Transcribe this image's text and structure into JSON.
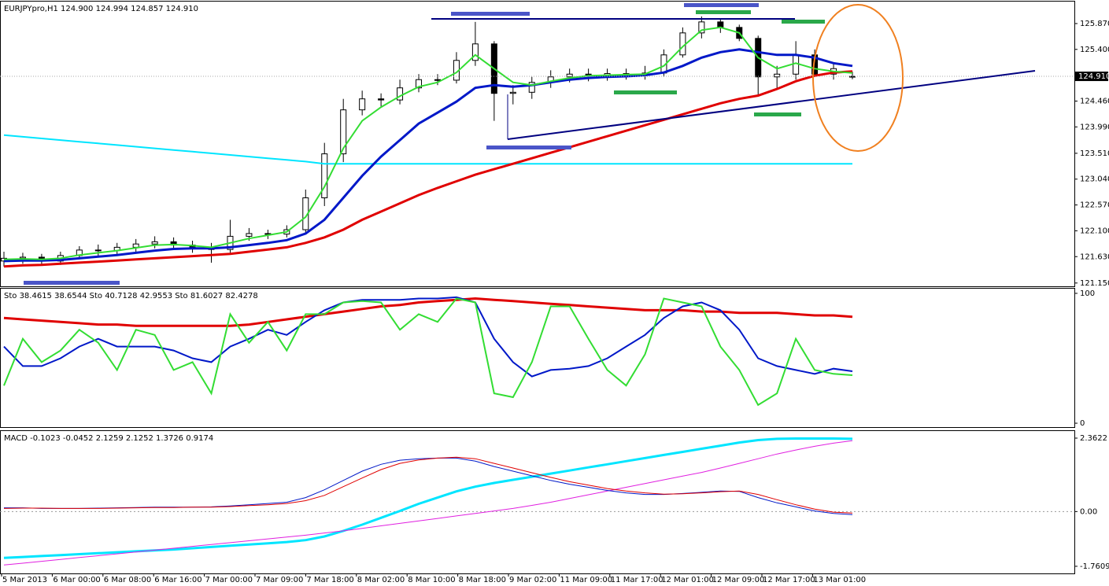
{
  "chart_data": [
    {
      "type": "candlestick",
      "title": "EURJPYpro,H1  124.900 124.994 124.857 124.910",
      "open": [
        121.55,
        121.6,
        121.62,
        121.55,
        121.65,
        121.75,
        121.74,
        121.8,
        121.86,
        121.9,
        121.84,
        121.8,
        121.76,
        122.0,
        122.05,
        122.04,
        122.12,
        122.7,
        123.5,
        124.3,
        124.5,
        124.48,
        124.7,
        124.85,
        124.84,
        125.2,
        125.5,
        124.6,
        124.62,
        124.8,
        124.9,
        124.95,
        124.93,
        124.96,
        124.94,
        124.97,
        125.3,
        125.7,
        125.9,
        125.8,
        125.6,
        124.9,
        124.95,
        125.3,
        124.95,
        124.9
      ],
      "high": [
        121.72,
        121.7,
        121.68,
        121.72,
        121.82,
        121.85,
        121.88,
        121.95,
        122.0,
        121.98,
        121.92,
        121.88,
        122.3,
        122.15,
        122.12,
        122.2,
        122.85,
        123.7,
        124.5,
        124.65,
        124.6,
        124.85,
        124.95,
        124.95,
        125.35,
        125.9,
        125.55,
        124.75,
        124.9,
        125.02,
        125.05,
        125.05,
        125.05,
        125.05,
        125.1,
        125.4,
        125.8,
        126.0,
        125.95,
        125.85,
        125.65,
        125.1,
        125.55,
        125.4,
        125.15,
        124.994
      ],
      "low": [
        121.45,
        121.5,
        121.48,
        121.48,
        121.58,
        121.62,
        121.65,
        121.7,
        121.78,
        121.75,
        121.7,
        121.52,
        121.7,
        121.92,
        121.95,
        121.98,
        122.05,
        122.55,
        123.35,
        124.2,
        124.35,
        124.4,
        124.62,
        124.75,
        124.78,
        125.1,
        124.1,
        124.4,
        124.5,
        124.7,
        124.8,
        124.82,
        124.83,
        124.85,
        124.85,
        124.9,
        125.25,
        125.6,
        125.7,
        125.55,
        124.55,
        124.7,
        124.85,
        124.9,
        124.85,
        124.857
      ],
      "close": [
        121.6,
        121.62,
        121.55,
        121.65,
        121.75,
        121.74,
        121.8,
        121.86,
        121.9,
        121.84,
        121.8,
        121.76,
        122.0,
        122.05,
        122.04,
        122.12,
        122.7,
        123.5,
        124.3,
        124.5,
        124.48,
        124.7,
        124.85,
        124.84,
        125.2,
        125.5,
        124.6,
        124.62,
        124.8,
        124.9,
        124.95,
        124.93,
        124.96,
        124.94,
        124.97,
        125.3,
        125.7,
        125.9,
        125.8,
        125.6,
        124.9,
        124.95,
        125.3,
        124.95,
        125.05,
        124.91
      ],
      "series": [
        {
          "color": "#00e5ff",
          "width": 2,
          "values": [
            123.84,
            123.81,
            123.78,
            123.75,
            123.72,
            123.69,
            123.66,
            123.63,
            123.6,
            123.57,
            123.54,
            123.51,
            123.48,
            123.45,
            123.42,
            123.39,
            123.36,
            123.32,
            123.32,
            123.32,
            123.32,
            123.32,
            123.32,
            123.32,
            123.32,
            123.32,
            123.32,
            123.32,
            123.32,
            123.32,
            123.32,
            123.32,
            123.32,
            123.32,
            123.32,
            123.32,
            123.32,
            123.32,
            123.32,
            123.32,
            123.32,
            123.32,
            123.32,
            123.32,
            123.32,
            123.32
          ]
        },
        {
          "color": "#e00000",
          "width": 3,
          "values": [
            121.45,
            121.47,
            121.48,
            121.5,
            121.52,
            121.54,
            121.56,
            121.58,
            121.6,
            121.62,
            121.64,
            121.66,
            121.68,
            121.72,
            121.76,
            121.8,
            121.88,
            121.98,
            122.12,
            122.3,
            122.45,
            122.6,
            122.75,
            122.88,
            123.0,
            123.12,
            123.22,
            123.32,
            123.42,
            123.52,
            123.62,
            123.72,
            123.82,
            123.92,
            124.02,
            124.12,
            124.22,
            124.32,
            124.42,
            124.5,
            124.56,
            124.68,
            124.82,
            124.92,
            124.98,
            125.0
          ]
        },
        {
          "color": "#0018c8",
          "width": 3,
          "values": [
            121.55,
            121.56,
            121.56,
            121.57,
            121.6,
            121.63,
            121.66,
            121.7,
            121.74,
            121.77,
            121.78,
            121.78,
            121.8,
            121.84,
            121.88,
            121.93,
            122.05,
            122.3,
            122.7,
            123.1,
            123.45,
            123.75,
            124.05,
            124.25,
            124.45,
            124.7,
            124.75,
            124.72,
            124.75,
            124.8,
            124.85,
            124.88,
            124.9,
            124.91,
            124.93,
            124.98,
            125.1,
            125.25,
            125.35,
            125.4,
            125.35,
            125.3,
            125.3,
            125.25,
            125.15,
            125.1
          ]
        },
        {
          "color": "#33dd33",
          "width": 2,
          "values": [
            121.58,
            121.59,
            121.58,
            121.6,
            121.66,
            121.7,
            121.74,
            121.79,
            121.84,
            121.85,
            121.83,
            121.8,
            121.88,
            121.96,
            122.02,
            122.08,
            122.35,
            122.9,
            123.6,
            124.1,
            124.35,
            124.55,
            124.72,
            124.8,
            124.98,
            125.3,
            125.05,
            124.8,
            124.75,
            124.82,
            124.88,
            124.92,
            124.93,
            124.94,
            124.95,
            125.1,
            125.45,
            125.75,
            125.8,
            125.7,
            125.25,
            125.05,
            125.15,
            125.05,
            125.0,
            124.97
          ]
        }
      ],
      "ylim": [
        121.09,
        126.27
      ],
      "yticks": [
        {
          "value": 125.87,
          "label": "125.870"
        },
        {
          "value": 125.4,
          "label": "125.400"
        },
        {
          "value": 124.46,
          "label": "124.460"
        },
        {
          "value": 123.99,
          "label": "123.990"
        },
        {
          "value": 123.51,
          "label": "123.510"
        },
        {
          "value": 123.04,
          "label": "123.040"
        },
        {
          "value": 122.57,
          "label": "122.570"
        },
        {
          "value": 122.1,
          "label": "122.100"
        },
        {
          "value": 121.63,
          "label": "121.630"
        },
        {
          "value": 121.15,
          "label": "121.150"
        }
      ],
      "last_price": {
        "value": 124.91,
        "label": "124.910"
      }
    },
    {
      "type": "line",
      "title": "Sto 38.4615 38.6544  Sto 40.7128 42.9553  Sto 81.6027 82.4278",
      "series": [
        {
          "color": "#e00000",
          "width": 3,
          "values": [
            81,
            80,
            79,
            78,
            77,
            76,
            76,
            75,
            75,
            75,
            75,
            75,
            75,
            76,
            78,
            80,
            82,
            84,
            86,
            88,
            90,
            91,
            93,
            94,
            95,
            96,
            95,
            94,
            93,
            92,
            91,
            90,
            89,
            88,
            87,
            87,
            87,
            86,
            86,
            85,
            85,
            85,
            84,
            83,
            83,
            82
          ]
        },
        {
          "color": "#0018c8",
          "width": 2,
          "values": [
            59,
            44,
            44,
            50,
            59,
            65,
            59,
            59,
            59,
            56,
            50,
            47,
            59,
            65,
            72,
            68,
            78,
            87,
            93,
            95,
            95,
            95,
            96,
            96,
            97,
            93,
            65,
            47,
            36,
            41,
            42,
            44,
            50,
            59,
            68,
            81,
            90,
            93,
            87,
            72,
            50,
            44,
            41,
            38,
            42,
            40
          ]
        },
        {
          "color": "#33dd33",
          "width": 2,
          "values": [
            29,
            65,
            47,
            56,
            72,
            62,
            41,
            72,
            68,
            41,
            47,
            23,
            84,
            62,
            78,
            56,
            84,
            84,
            93,
            94,
            93,
            72,
            84,
            78,
            96,
            93,
            23,
            20,
            47,
            90,
            90,
            65,
            41,
            29,
            53,
            96,
            93,
            90,
            59,
            41,
            14,
            23,
            65,
            41,
            38,
            37
          ]
        }
      ],
      "ylim": [
        -3,
        103.6
      ],
      "yticks": [
        0,
        100
      ]
    },
    {
      "type": "line",
      "title": "MACD -0.1023 -0.0452 2.1259 2.1252 1.3726 0.9174",
      "series": [
        {
          "color": "#00e5ff",
          "width": 3,
          "values": [
            -1.49,
            -1.46,
            -1.43,
            -1.4,
            -1.37,
            -1.34,
            -1.31,
            -1.28,
            -1.25,
            -1.22,
            -1.18,
            -1.14,
            -1.1,
            -1.06,
            -1.02,
            -0.98,
            -0.92,
            -0.8,
            -0.62,
            -0.42,
            -0.2,
            0.02,
            0.25,
            0.45,
            0.65,
            0.8,
            0.92,
            1.02,
            1.12,
            1.22,
            1.32,
            1.42,
            1.52,
            1.62,
            1.72,
            1.82,
            1.92,
            2.02,
            2.12,
            2.22,
            2.3,
            2.34,
            2.35,
            2.35,
            2.35,
            2.34
          ]
        },
        {
          "color": "#e020e0",
          "width": 1,
          "values": [
            -1.72,
            -1.66,
            -1.6,
            -1.54,
            -1.48,
            -1.42,
            -1.36,
            -1.3,
            -1.24,
            -1.18,
            -1.12,
            -1.06,
            -1.0,
            -0.94,
            -0.88,
            -0.82,
            -0.76,
            -0.69,
            -0.62,
            -0.54,
            -0.46,
            -0.38,
            -0.3,
            -0.22,
            -0.14,
            -0.06,
            0.02,
            0.1,
            0.2,
            0.3,
            0.42,
            0.54,
            0.66,
            0.78,
            0.9,
            1.02,
            1.14,
            1.26,
            1.4,
            1.55,
            1.7,
            1.85,
            1.98,
            2.1,
            2.2,
            2.28
          ]
        },
        {
          "color": "#0018c8",
          "width": 1,
          "values": [
            0.12,
            0.12,
            0.1,
            0.1,
            0.1,
            0.11,
            0.12,
            0.13,
            0.14,
            0.14,
            0.14,
            0.15,
            0.18,
            0.22,
            0.26,
            0.3,
            0.45,
            0.7,
            1.0,
            1.3,
            1.52,
            1.65,
            1.7,
            1.72,
            1.72,
            1.62,
            1.45,
            1.3,
            1.15,
            1.0,
            0.88,
            0.78,
            0.68,
            0.6,
            0.55,
            0.55,
            0.58,
            0.62,
            0.66,
            0.65,
            0.45,
            0.28,
            0.15,
            0.02,
            -0.06,
            -0.1
          ]
        },
        {
          "color": "#e00000",
          "width": 1,
          "values": [
            0.1,
            0.11,
            0.11,
            0.1,
            0.1,
            0.1,
            0.11,
            0.12,
            0.13,
            0.13,
            0.14,
            0.14,
            0.16,
            0.19,
            0.22,
            0.26,
            0.35,
            0.52,
            0.8,
            1.08,
            1.35,
            1.55,
            1.66,
            1.72,
            1.75,
            1.7,
            1.55,
            1.4,
            1.25,
            1.1,
            0.96,
            0.85,
            0.74,
            0.66,
            0.6,
            0.56,
            0.57,
            0.6,
            0.64,
            0.66,
            0.55,
            0.38,
            0.22,
            0.08,
            -0.02,
            -0.05
          ]
        }
      ],
      "ylim": [
        -1.99,
        2.59
      ],
      "yticks": [
        2.3622,
        {
          "value": 0,
          "label": "0.00"
        },
        -1.7609
      ],
      "x_labels": [
        "5 Mar 2013",
        "6 Mar 00:00",
        "6 Mar 08:00",
        "6 Mar 16:00",
        "7 Mar 00:00",
        "7 Mar 09:00",
        "7 Mar 18:00",
        "8 Mar 02:00",
        "8 Mar 10:00",
        "8 Mar 18:00",
        "9 Mar 02:00",
        "11 Mar 09:00",
        "11 Mar 17:00",
        "12 Mar 01:00",
        "12 Mar 09:00",
        "12 Mar 17:00",
        "13 Mar 01:00"
      ]
    }
  ]
}
